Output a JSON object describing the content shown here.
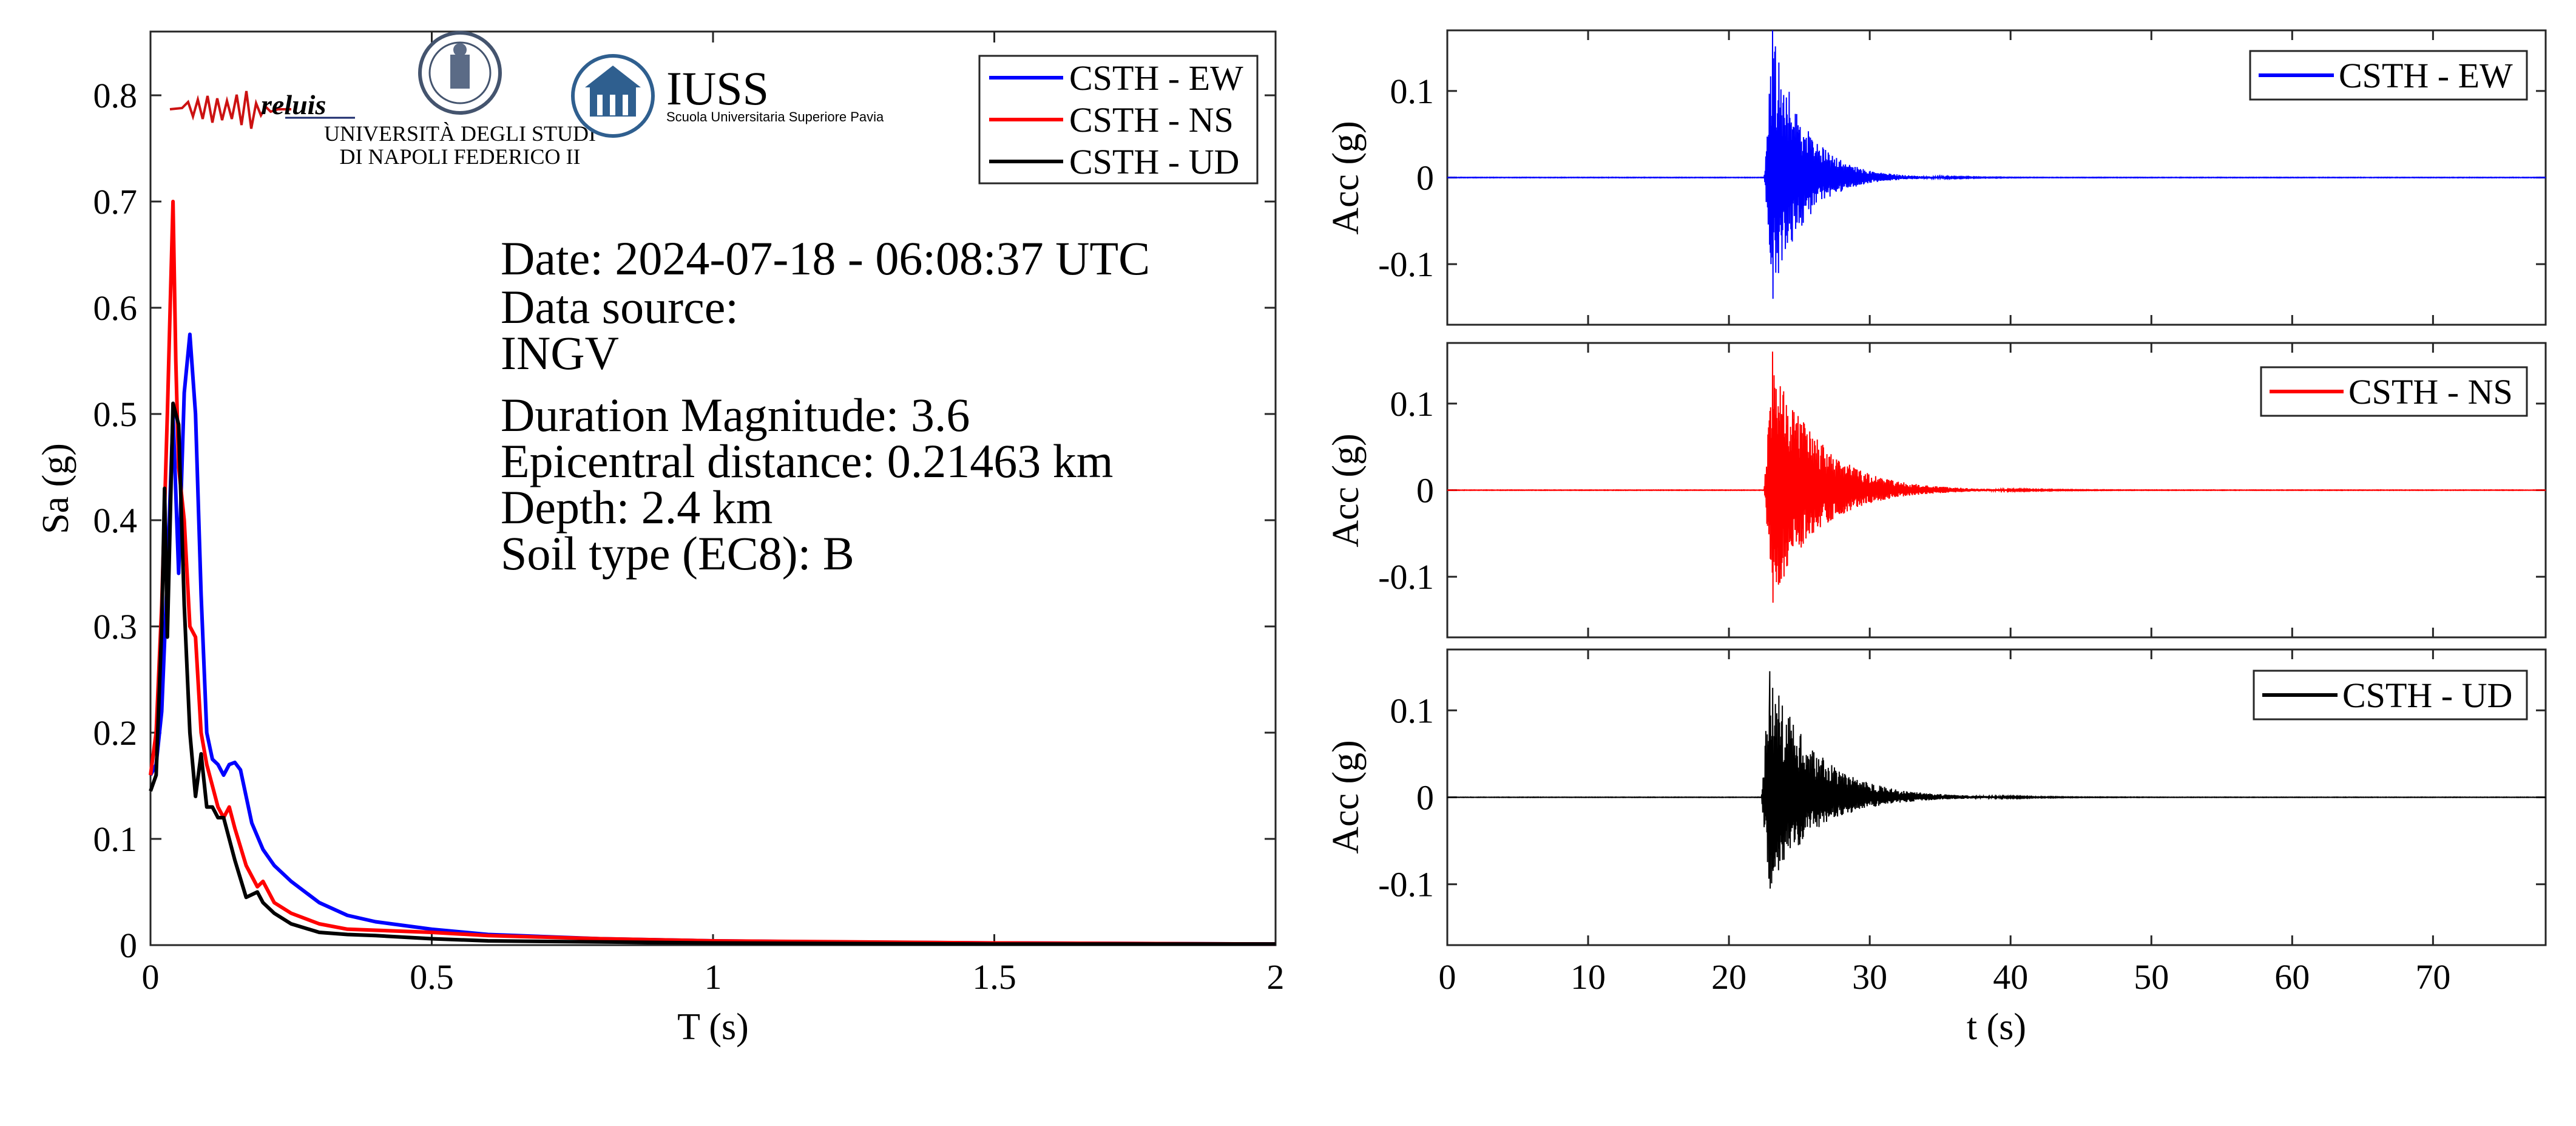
{
  "chart_data": [
    {
      "type": "line",
      "xlabel": "T (s)",
      "ylabel": "Sa (g)",
      "xlim": [
        0,
        2
      ],
      "ylim": [
        0,
        0.86
      ],
      "xticks": [
        0,
        0.5,
        1,
        1.5,
        2
      ],
      "xtick_labels": [
        "0",
        "0.5",
        "1",
        "1.5",
        "2"
      ],
      "yticks": [
        0,
        0.1,
        0.2,
        0.3,
        0.4,
        0.5,
        0.6,
        0.7,
        0.8
      ],
      "ytick_labels": [
        "0",
        "0.1",
        "0.2",
        "0.3",
        "0.4",
        "0.5",
        "0.6",
        "0.7",
        "0.8"
      ],
      "grid": false,
      "legend_position": "top-right",
      "annotation_lines": [
        "Date: 2024-07-18 - 06:08:37 UTC",
        "Data source:",
        "INGV",
        "Duration Magnitude: 3.6",
        "Epicentral distance: 0.21463 km",
        "Depth: 2.4 km",
        "Soil type (EC8): B"
      ],
      "logos": {
        "reluis": "reluis",
        "unina_line1": "UNIVERSITÀ DEGLI STUDI",
        "unina_line2": "DI NAPOLI FEDERICO II",
        "iuss_title": "IUSS",
        "iuss_subtitle": "Scuola Universitaria Superiore Pavia"
      },
      "series": [
        {
          "name": "CSTH - EW",
          "color": "#0000ff",
          "x": [
            0,
            0.01,
            0.02,
            0.03,
            0.04,
            0.05,
            0.06,
            0.07,
            0.08,
            0.09,
            0.1,
            0.11,
            0.12,
            0.13,
            0.14,
            0.15,
            0.16,
            0.17,
            0.18,
            0.2,
            0.22,
            0.25,
            0.3,
            0.35,
            0.4,
            0.5,
            0.6,
            0.8,
            1,
            1.2,
            1.5,
            2
          ],
          "y": [
            0.16,
            0.17,
            0.22,
            0.35,
            0.5,
            0.35,
            0.52,
            0.575,
            0.5,
            0.33,
            0.2,
            0.175,
            0.17,
            0.16,
            0.17,
            0.172,
            0.165,
            0.14,
            0.115,
            0.09,
            0.075,
            0.06,
            0.04,
            0.028,
            0.022,
            0.015,
            0.01,
            0.006,
            0.004,
            0.003,
            0.002,
            0.001
          ]
        },
        {
          "name": "CSTH - NS",
          "color": "#ff0000",
          "x": [
            0,
            0.01,
            0.02,
            0.03,
            0.035,
            0.04,
            0.045,
            0.05,
            0.06,
            0.07,
            0.08,
            0.09,
            0.1,
            0.11,
            0.12,
            0.13,
            0.14,
            0.15,
            0.17,
            0.19,
            0.2,
            0.22,
            0.25,
            0.3,
            0.35,
            0.4,
            0.5,
            0.6,
            0.8,
            1,
            1.5,
            2
          ],
          "y": [
            0.16,
            0.2,
            0.32,
            0.5,
            0.6,
            0.7,
            0.55,
            0.45,
            0.4,
            0.3,
            0.29,
            0.2,
            0.17,
            0.15,
            0.13,
            0.12,
            0.13,
            0.11,
            0.075,
            0.055,
            0.06,
            0.04,
            0.03,
            0.02,
            0.015,
            0.014,
            0.012,
            0.009,
            0.006,
            0.004,
            0.002,
            0.001
          ]
        },
        {
          "name": "CSTH - UD",
          "color": "#000000",
          "x": [
            0,
            0.01,
            0.02,
            0.025,
            0.03,
            0.04,
            0.05,
            0.06,
            0.07,
            0.08,
            0.09,
            0.1,
            0.11,
            0.12,
            0.13,
            0.15,
            0.17,
            0.19,
            0.2,
            0.22,
            0.25,
            0.3,
            0.35,
            0.4,
            0.5,
            0.6,
            0.8,
            1,
            1.5,
            2
          ],
          "y": [
            0.145,
            0.16,
            0.3,
            0.43,
            0.29,
            0.51,
            0.49,
            0.32,
            0.2,
            0.14,
            0.18,
            0.13,
            0.13,
            0.12,
            0.12,
            0.08,
            0.045,
            0.05,
            0.04,
            0.03,
            0.02,
            0.012,
            0.01,
            0.009,
            0.006,
            0.004,
            0.003,
            0.002,
            0.001,
            0.001
          ]
        }
      ]
    },
    {
      "type": "line",
      "ylabel": "Acc (g)",
      "xlim": [
        0,
        78
      ],
      "ylim": [
        -0.17,
        0.17
      ],
      "yticks": [
        -0.1,
        0,
        0.1
      ],
      "ytick_labels": [
        "-0.1",
        "0",
        "0.1"
      ],
      "grid": false,
      "legend_position": "top-right",
      "series": [
        {
          "name": "CSTH - EW",
          "color": "#0000ff",
          "onset_t": 22.5,
          "peak_positive": 0.17,
          "peak_negative": -0.14,
          "decay_end_t": 32
        }
      ]
    },
    {
      "type": "line",
      "ylabel": "Acc (g)",
      "xlim": [
        0,
        78
      ],
      "ylim": [
        -0.17,
        0.17
      ],
      "yticks": [
        -0.1,
        0,
        0.1
      ],
      "ytick_labels": [
        "-0.1",
        "0",
        "0.1"
      ],
      "grid": false,
      "legend_position": "top-right",
      "series": [
        {
          "name": "CSTH - NS",
          "color": "#ff0000",
          "onset_t": 22.5,
          "peak_positive": 0.16,
          "peak_negative": -0.13,
          "decay_end_t": 36
        }
      ]
    },
    {
      "type": "line",
      "xlabel": "t (s)",
      "ylabel": "Acc (g)",
      "xlim": [
        0,
        78
      ],
      "ylim": [
        -0.17,
        0.17
      ],
      "xticks": [
        0,
        10,
        20,
        30,
        40,
        50,
        60,
        70
      ],
      "xtick_labels": [
        "0",
        "10",
        "20",
        "30",
        "40",
        "50",
        "60",
        "70"
      ],
      "yticks": [
        -0.1,
        0,
        0.1
      ],
      "ytick_labels": [
        "-0.1",
        "0",
        "0.1"
      ],
      "grid": false,
      "legend_position": "top-right",
      "series": [
        {
          "name": "CSTH - UD",
          "color": "#000000",
          "onset_t": 22.3,
          "peak_positive": 0.145,
          "peak_negative": -0.105,
          "decay_end_t": 36
        }
      ]
    }
  ]
}
